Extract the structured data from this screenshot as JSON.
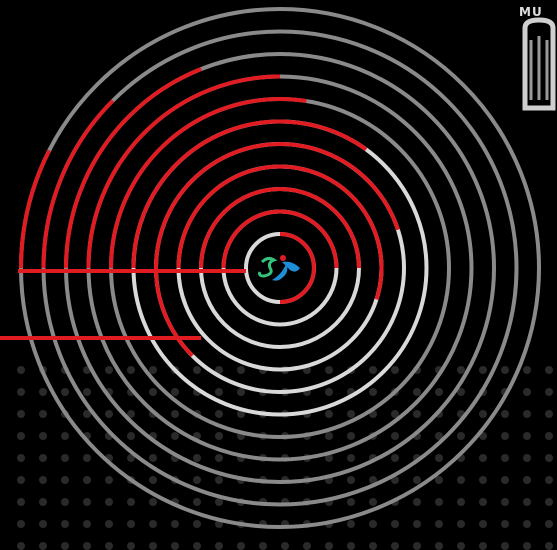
{
  "scene": {
    "description_free": true,
    "colors": {
      "background": "#000000",
      "ring_grey": "#8a8a8a",
      "ring_light": "#d9d9d9",
      "ring_red": "#e11b22",
      "dots": "#2a2a2a",
      "logo_green": "#35c27a",
      "logo_blue": "#1e8fd6",
      "logo_red": "#e11b22"
    },
    "ring_count": 11
  },
  "corner_badge": {
    "text": "MU",
    "icon": "emblem-icon"
  },
  "center_logo": {
    "icon": "mascot-logo-icon"
  }
}
